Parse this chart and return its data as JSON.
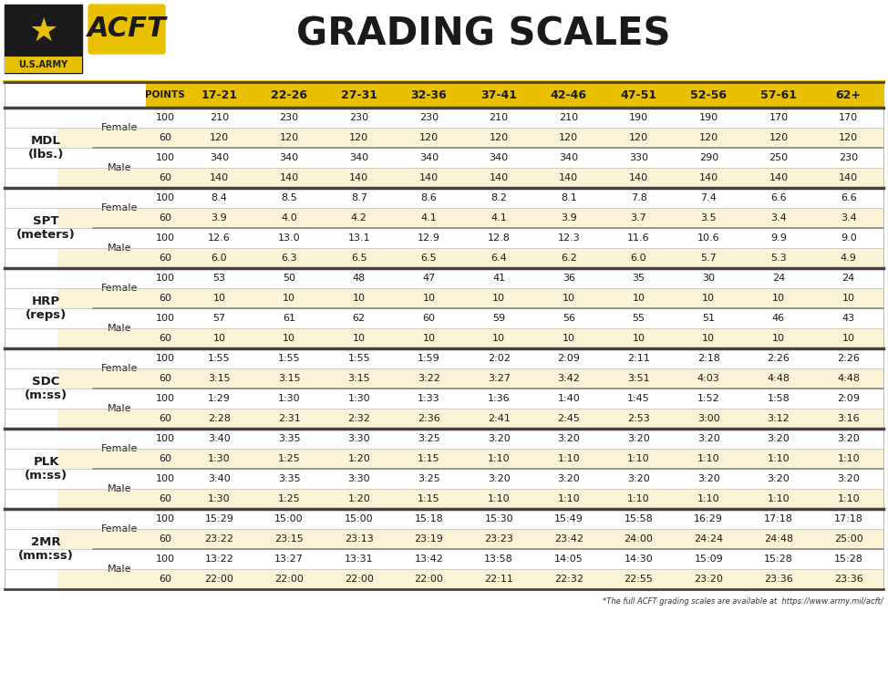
{
  "title": "GRADING SCALES",
  "acft_label": "ACFT",
  "age_groups": [
    "17-21",
    "22-26",
    "27-31",
    "32-36",
    "37-41",
    "42-46",
    "47-51",
    "52-56",
    "57-61",
    "62+"
  ],
  "header_bg": "#E8C000",
  "row_bg_white": "#FFFFFF",
  "row_bg_cream": "#FBF3D5",
  "sep_color_heavy": "#444444",
  "sep_color_mid": "#888888",
  "sep_color_light": "#BBBBBB",
  "footnote": "*The full ACFT grading scales are available at  https://www.army.mil/acft/",
  "sections": [
    {
      "name": "MDL\n(lbs.)",
      "rows": [
        {
          "gender": "Female",
          "point": "100",
          "values": [
            "210",
            "230",
            "230",
            "230",
            "210",
            "210",
            "190",
            "190",
            "170",
            "170"
          ]
        },
        {
          "gender": "Female",
          "point": "60",
          "values": [
            "120",
            "120",
            "120",
            "120",
            "120",
            "120",
            "120",
            "120",
            "120",
            "120"
          ]
        },
        {
          "gender": "Male",
          "point": "100",
          "values": [
            "340",
            "340",
            "340",
            "340",
            "340",
            "340",
            "330",
            "290",
            "250",
            "230"
          ]
        },
        {
          "gender": "Male",
          "point": "60",
          "values": [
            "140",
            "140",
            "140",
            "140",
            "140",
            "140",
            "140",
            "140",
            "140",
            "140"
          ]
        }
      ]
    },
    {
      "name": "SPT\n(meters)",
      "rows": [
        {
          "gender": "Female",
          "point": "100",
          "values": [
            "8.4",
            "8.5",
            "8.7",
            "8.6",
            "8.2",
            "8.1",
            "7.8",
            "7.4",
            "6.6",
            "6.6"
          ]
        },
        {
          "gender": "Female",
          "point": "60",
          "values": [
            "3.9",
            "4.0",
            "4.2",
            "4.1",
            "4.1",
            "3.9",
            "3.7",
            "3.5",
            "3.4",
            "3.4"
          ]
        },
        {
          "gender": "Male",
          "point": "100",
          "values": [
            "12.6",
            "13.0",
            "13.1",
            "12.9",
            "12.8",
            "12.3",
            "11.6",
            "10.6",
            "9.9",
            "9.0"
          ]
        },
        {
          "gender": "Male",
          "point": "60",
          "values": [
            "6.0",
            "6.3",
            "6.5",
            "6.5",
            "6.4",
            "6.2",
            "6.0",
            "5.7",
            "5.3",
            "4.9"
          ]
        }
      ]
    },
    {
      "name": "HRP\n(reps)",
      "rows": [
        {
          "gender": "Female",
          "point": "100",
          "values": [
            "53",
            "50",
            "48",
            "47",
            "41",
            "36",
            "35",
            "30",
            "24",
            "24"
          ]
        },
        {
          "gender": "Female",
          "point": "60",
          "values": [
            "10",
            "10",
            "10",
            "10",
            "10",
            "10",
            "10",
            "10",
            "10",
            "10"
          ]
        },
        {
          "gender": "Male",
          "point": "100",
          "values": [
            "57",
            "61",
            "62",
            "60",
            "59",
            "56",
            "55",
            "51",
            "46",
            "43"
          ]
        },
        {
          "gender": "Male",
          "point": "60",
          "values": [
            "10",
            "10",
            "10",
            "10",
            "10",
            "10",
            "10",
            "10",
            "10",
            "10"
          ]
        }
      ]
    },
    {
      "name": "SDC\n(m:ss)",
      "rows": [
        {
          "gender": "Female",
          "point": "100",
          "values": [
            "1:55",
            "1:55",
            "1:55",
            "1:59",
            "2:02",
            "2:09",
            "2:11",
            "2:18",
            "2:26",
            "2:26"
          ]
        },
        {
          "gender": "Female",
          "point": "60",
          "values": [
            "3:15",
            "3:15",
            "3:15",
            "3:22",
            "3:27",
            "3:42",
            "3:51",
            "4:03",
            "4:48",
            "4:48"
          ]
        },
        {
          "gender": "Male",
          "point": "100",
          "values": [
            "1:29",
            "1:30",
            "1:30",
            "1:33",
            "1:36",
            "1:40",
            "1:45",
            "1:52",
            "1:58",
            "2:09"
          ]
        },
        {
          "gender": "Male",
          "point": "60",
          "values": [
            "2:28",
            "2:31",
            "2:32",
            "2:36",
            "2:41",
            "2:45",
            "2:53",
            "3:00",
            "3:12",
            "3:16"
          ]
        }
      ]
    },
    {
      "name": "PLK\n(m:ss)",
      "rows": [
        {
          "gender": "Female",
          "point": "100",
          "values": [
            "3:40",
            "3:35",
            "3:30",
            "3:25",
            "3:20",
            "3:20",
            "3:20",
            "3:20",
            "3:20",
            "3:20"
          ]
        },
        {
          "gender": "Female",
          "point": "60",
          "values": [
            "1:30",
            "1:25",
            "1:20",
            "1:15",
            "1:10",
            "1:10",
            "1:10",
            "1:10",
            "1:10",
            "1:10"
          ]
        },
        {
          "gender": "Male",
          "point": "100",
          "values": [
            "3:40",
            "3:35",
            "3:30",
            "3:25",
            "3:20",
            "3:20",
            "3:20",
            "3:20",
            "3:20",
            "3:20"
          ]
        },
        {
          "gender": "Male",
          "point": "60",
          "values": [
            "1:30",
            "1:25",
            "1:20",
            "1:15",
            "1:10",
            "1:10",
            "1:10",
            "1:10",
            "1:10",
            "1:10"
          ]
        }
      ]
    },
    {
      "name": "2MR\n(mm:ss)",
      "rows": [
        {
          "gender": "Female",
          "point": "100",
          "values": [
            "15:29",
            "15:00",
            "15:00",
            "15:18",
            "15:30",
            "15:49",
            "15:58",
            "16:29",
            "17:18",
            "17:18"
          ]
        },
        {
          "gender": "Female",
          "point": "60",
          "values": [
            "23:22",
            "23:15",
            "23:13",
            "23:19",
            "23:23",
            "23:42",
            "24:00",
            "24:24",
            "24:48",
            "25:00"
          ]
        },
        {
          "gender": "Male",
          "point": "100",
          "values": [
            "13:22",
            "13:27",
            "13:31",
            "13:42",
            "13:58",
            "14:05",
            "14:30",
            "15:09",
            "15:28",
            "15:28"
          ]
        },
        {
          "gender": "Male",
          "point": "60",
          "values": [
            "22:00",
            "22:00",
            "22:00",
            "22:00",
            "22:11",
            "22:32",
            "22:55",
            "23:20",
            "23:36",
            "23:36"
          ]
        }
      ]
    }
  ]
}
